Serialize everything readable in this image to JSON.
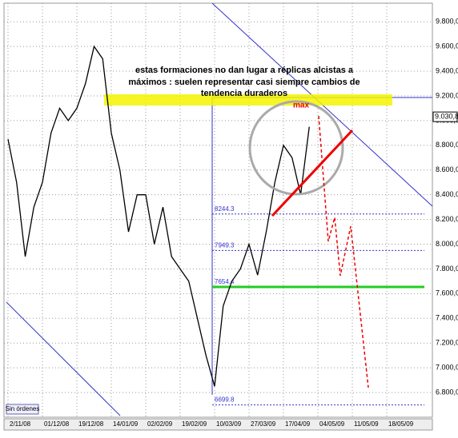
{
  "chart_data": {
    "type": "line",
    "categories": [
      "2/11/08",
      null,
      null,
      null,
      "01/12/08",
      null,
      null,
      null,
      "19/12/08",
      null,
      null,
      null,
      "14/01/09",
      null,
      null,
      null,
      "02/02/09",
      null,
      null,
      null,
      "19/02/09",
      null,
      null,
      null,
      "10/03/09",
      null,
      null,
      null,
      "27/03/09",
      null,
      null,
      null,
      "17/04/09",
      null,
      null,
      null,
      "04/05/09",
      null,
      null,
      null,
      "11/05/09",
      null,
      null,
      null,
      "18/05/09",
      null,
      null,
      null,
      null
    ],
    "series": [
      {
        "color": "#000000",
        "values": [
          8850,
          8500,
          7900,
          8300,
          8500,
          8900,
          9100,
          9000,
          9100,
          9300,
          9600,
          9500,
          8900,
          8600,
          8100,
          8400,
          8400,
          8000,
          8300,
          7900,
          7800,
          7700,
          7400,
          7100,
          6850,
          7500,
          7700,
          7800,
          8000,
          7750,
          8100,
          8500,
          8800,
          8700,
          8400,
          8950,
          null,
          null,
          null,
          null,
          null,
          null,
          null,
          null,
          null,
          null,
          null,
          null,
          null
        ]
      }
    ],
    "ylim": [
      6600,
      9950
    ],
    "yticks": [
      {
        "value": 6800,
        "label": "6.800,0"
      },
      {
        "value": 7000,
        "label": "7.000,0"
      },
      {
        "value": 7200,
        "label": "7.200,0"
      },
      {
        "value": 7400,
        "label": "7.400,0"
      },
      {
        "value": 7600,
        "label": "7.600,0"
      },
      {
        "value": 7800,
        "label": "7.800,0"
      },
      {
        "value": 8000,
        "label": "8.000,0"
      },
      {
        "value": 8200,
        "label": "8.200,0"
      },
      {
        "value": 8400,
        "label": "8.400,0"
      },
      {
        "value": 8600,
        "label": "8.600,0"
      },
      {
        "value": 8800,
        "label": "8.800,0"
      },
      {
        "value": 9000,
        "label": "9.000,0"
      },
      {
        "value": 9200,
        "label": "9.200,0"
      },
      {
        "value": 9400,
        "label": "9.400,0"
      },
      {
        "value": 9600,
        "label": "9.600,0"
      },
      {
        "value": 9800,
        "label": "9.800,0"
      }
    ],
    "grid": true,
    "last_price": {
      "value": 9030.8,
      "label": "9.030,8"
    },
    "levels": [
      8244.3,
      7949.3,
      {
        "value": 7654.4,
        "label": "7654.4"
      },
      6699.8
    ],
    "annotations": [
      "estas formaciones no dan lugar a réplicas alcistas a",
      "máximos : suelen representar casi siempre cambios de",
      "tendencia duraderos"
    ],
    "max_label": "max",
    "status": "Sin órdenes"
  }
}
